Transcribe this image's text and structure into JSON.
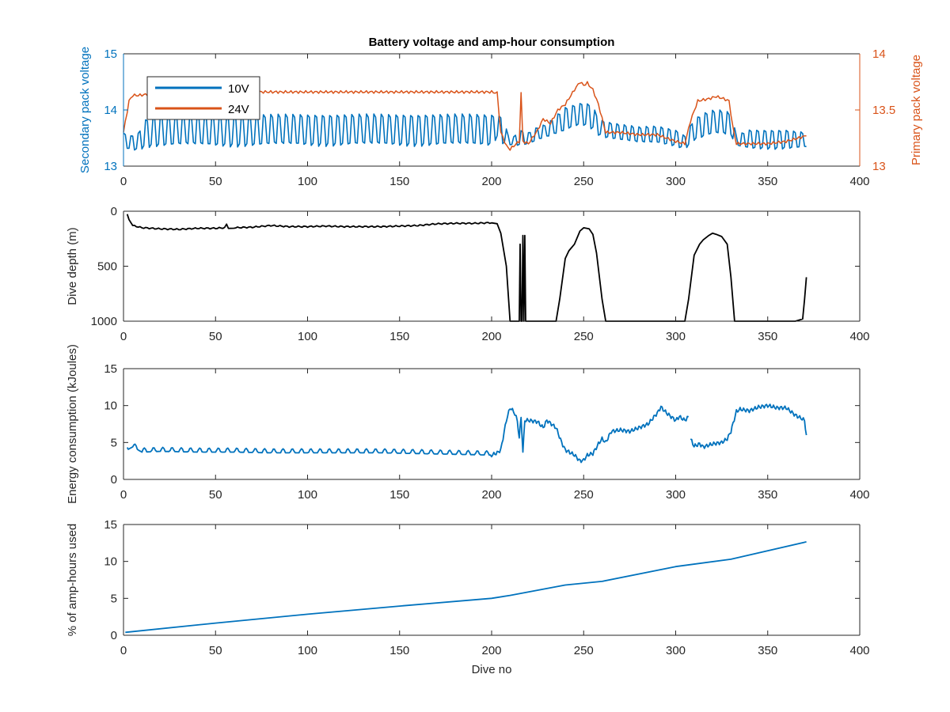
{
  "figure_title": "Battery voltage and amp-hour consumption",
  "colors": {
    "blue": "#0072BD",
    "orange": "#D95319",
    "black": "#000000",
    "axes": "#262626",
    "grid": "#e3e3e3",
    "background": "#ffffff"
  },
  "chart_data": [
    {
      "type": "line",
      "title": "Battery voltage and amp-hour consumption",
      "xlabel": "",
      "xlim": [
        0,
        400
      ],
      "x_ticks": [
        "0",
        "50",
        "100",
        "150",
        "200",
        "250",
        "300",
        "350",
        "400"
      ],
      "grid": false,
      "legend": {
        "placement": "top-left",
        "entries": [
          "10V",
          "24V"
        ]
      },
      "left_axis": {
        "label": "Secondary pack voltage",
        "ylim": [
          13,
          15
        ],
        "ticks": [
          "13",
          "14",
          "15"
        ],
        "color": "#0072BD"
      },
      "right_axis": {
        "label": "Primary pack voltage",
        "ylim": [
          13,
          14
        ],
        "ticks": [
          "13",
          "13.5",
          "14"
        ],
        "color": "#D95319"
      },
      "series": [
        {
          "name": "10V",
          "axis": "left",
          "color": "#0072BD",
          "pattern": "oscillating",
          "x": [
            0,
            2,
            4,
            8,
            12,
            20,
            60,
            100,
            140,
            180,
            200,
            203,
            206,
            210,
            215,
            220,
            225,
            230,
            235,
            240,
            245,
            250,
            255,
            258,
            262,
            270,
            280,
            290,
            300,
            305,
            310,
            315,
            320,
            325,
            330,
            333,
            340,
            350,
            360,
            371
          ],
          "low": [
            13.15,
            13.3,
            13.28,
            13.28,
            13.33,
            13.34,
            13.34,
            13.35,
            13.35,
            13.35,
            13.35,
            13.5,
            13.4,
            13.38,
            13.36,
            13.38,
            13.45,
            13.5,
            13.55,
            13.6,
            13.7,
            13.72,
            13.65,
            13.55,
            13.5,
            13.45,
            13.4,
            13.4,
            13.35,
            13.3,
            13.45,
            13.5,
            13.55,
            13.55,
            13.5,
            13.35,
            13.3,
            13.3,
            13.3,
            13.32
          ],
          "high": [
            13.6,
            13.6,
            13.55,
            13.6,
            13.85,
            13.92,
            13.92,
            13.93,
            13.93,
            13.93,
            13.93,
            13.92,
            13.9,
            13.45,
            13.65,
            13.6,
            13.7,
            13.75,
            13.9,
            14.05,
            14.1,
            14.15,
            14.1,
            13.85,
            13.8,
            13.75,
            13.7,
            13.72,
            13.65,
            13.55,
            13.85,
            13.95,
            14.0,
            14.0,
            13.95,
            13.55,
            13.65,
            13.65,
            13.65,
            13.6
          ],
          "period": 4
        },
        {
          "name": "24V",
          "axis": "right",
          "color": "#D95319",
          "x": [
            0,
            3,
            5,
            8,
            20,
            50,
            100,
            150,
            180,
            200,
            203,
            205,
            208,
            210,
            212,
            215,
            216,
            217,
            220,
            225,
            228,
            232,
            236,
            240,
            245,
            248,
            250,
            252,
            255,
            258,
            262,
            270,
            280,
            290,
            300,
            305,
            308,
            312,
            318,
            322,
            326,
            329,
            331,
            333,
            340,
            350,
            360,
            371
          ],
          "y": [
            13.3,
            13.58,
            13.63,
            13.63,
            13.65,
            13.66,
            13.66,
            13.66,
            13.66,
            13.66,
            13.65,
            13.3,
            13.18,
            13.15,
            13.18,
            13.22,
            13.65,
            13.22,
            13.2,
            13.32,
            13.42,
            13.38,
            13.5,
            13.55,
            13.68,
            13.75,
            13.72,
            13.74,
            13.68,
            13.55,
            13.3,
            13.3,
            13.28,
            13.28,
            13.22,
            13.2,
            13.4,
            13.58,
            13.6,
            13.62,
            13.6,
            13.58,
            13.35,
            13.2,
            13.2,
            13.2,
            13.22,
            13.27
          ]
        }
      ]
    },
    {
      "type": "line",
      "title": "",
      "xlabel": "",
      "ylabel": "Dive depth (m)",
      "xlim": [
        0,
        400
      ],
      "ylim": [
        0,
        1000
      ],
      "y_reversed": true,
      "x_ticks": [
        "0",
        "50",
        "100",
        "150",
        "200",
        "250",
        "300",
        "350",
        "400"
      ],
      "y_ticks": [
        "0",
        "500",
        "1000"
      ],
      "grid": false,
      "series": [
        {
          "color": "#000000",
          "x": [
            2,
            3,
            5,
            10,
            20,
            30,
            40,
            50,
            55,
            56,
            57,
            60,
            70,
            80,
            90,
            100,
            110,
            120,
            130,
            140,
            150,
            160,
            170,
            180,
            190,
            200,
            203,
            205,
            208,
            210,
            213,
            215,
            215.5,
            216,
            216.5,
            217,
            217.5,
            218,
            218.5,
            219,
            220,
            225,
            230,
            235,
            237,
            240,
            242,
            245,
            248,
            250,
            253,
            255,
            257,
            260,
            262,
            270,
            280,
            290,
            300,
            302,
            305,
            307,
            310,
            313,
            315,
            318,
            320,
            322,
            325,
            328,
            330,
            332,
            340,
            350,
            360,
            365,
            369,
            370,
            371
          ],
          "y": [
            30,
            80,
            130,
            150,
            160,
            165,
            155,
            155,
            150,
            120,
            150,
            150,
            145,
            130,
            140,
            140,
            135,
            140,
            140,
            140,
            135,
            130,
            115,
            110,
            110,
            105,
            110,
            200,
            500,
            1000,
            1000,
            1000,
            300,
            1000,
            1000,
            220,
            1000,
            220,
            1000,
            1000,
            1000,
            1000,
            1000,
            1000,
            800,
            430,
            360,
            300,
            180,
            150,
            160,
            210,
            380,
            800,
            1000,
            1000,
            1000,
            1000,
            1000,
            1000,
            1000,
            800,
            400,
            300,
            260,
            220,
            200,
            210,
            230,
            300,
            600,
            1000,
            1000,
            1000,
            1000,
            1000,
            980,
            800,
            600
          ]
        }
      ]
    },
    {
      "type": "line",
      "title": "",
      "xlabel": "",
      "ylabel": "Energy consumption (kJoules)",
      "xlim": [
        0,
        400
      ],
      "ylim": [
        0,
        15
      ],
      "x_ticks": [
        "0",
        "50",
        "100",
        "150",
        "200",
        "250",
        "300",
        "350",
        "400"
      ],
      "y_ticks": [
        "0",
        "5",
        "10",
        "15"
      ],
      "grid": false,
      "series": [
        {
          "color": "#0072BD",
          "segments": [
            {
              "x": [
                2,
                5,
                10,
                20,
                40,
                60,
                80,
                100,
                120,
                140,
                160,
                180,
                200,
                203,
                205,
                208,
                210,
                212,
                214,
                215,
                216,
                217,
                218,
                220,
                225,
                228,
                230,
                235,
                238,
                240,
                245,
                248,
                250,
                252,
                255,
                258,
                260,
                262,
                265,
                270,
                275,
                280,
                285,
                290,
                292,
                295,
                300,
                302,
                305,
                307
              ],
              "y": [
                4.0,
                4.4,
                3.7,
                3.8,
                3.7,
                3.7,
                3.6,
                3.6,
                3.6,
                3.6,
                3.5,
                3.4,
                3.3,
                3.6,
                4.0,
                8.0,
                9.7,
                9.2,
                8.0,
                5.5,
                8.5,
                3.6,
                8.0,
                8.0,
                7.8,
                7.0,
                8.0,
                7.0,
                5.0,
                4.0,
                3.3,
                2.5,
                2.6,
                3.3,
                3.5,
                4.8,
                5.5,
                5.0,
                6.5,
                6.7,
                6.5,
                7.0,
                7.5,
                9.0,
                9.8,
                9.0,
                8.0,
                8.5,
                8.0,
                8.5
              ]
            },
            {
              "x": [
                308,
                310,
                313,
                315,
                320,
                325,
                328,
                330,
                333,
                335,
                340,
                345,
                350,
                355,
                360,
                365,
                368,
                370,
                371
              ],
              "y": [
                5.5,
                4.5,
                4.8,
                4.4,
                4.8,
                5.0,
                5.5,
                6.5,
                9.2,
                9.5,
                9.3,
                9.8,
                10.0,
                9.7,
                9.7,
                8.7,
                8.3,
                8.0,
                6.0
              ]
            }
          ]
        }
      ]
    },
    {
      "type": "line",
      "title": "",
      "xlabel": "Dive no",
      "ylabel": "% of amp-hours used",
      "xlim": [
        0,
        400
      ],
      "ylim": [
        0,
        15
      ],
      "x_ticks": [
        "0",
        "50",
        "100",
        "150",
        "200",
        "250",
        "300",
        "350",
        "400"
      ],
      "y_ticks": [
        "0",
        "5",
        "10",
        "15"
      ],
      "grid": false,
      "series": [
        {
          "color": "#0072BD",
          "x": [
            1,
            50,
            100,
            150,
            200,
            210,
            240,
            260,
            300,
            330,
            371
          ],
          "y": [
            0.4,
            1.65,
            2.85,
            3.95,
            5.0,
            5.4,
            6.8,
            7.3,
            9.3,
            10.3,
            12.65
          ]
        }
      ]
    }
  ]
}
